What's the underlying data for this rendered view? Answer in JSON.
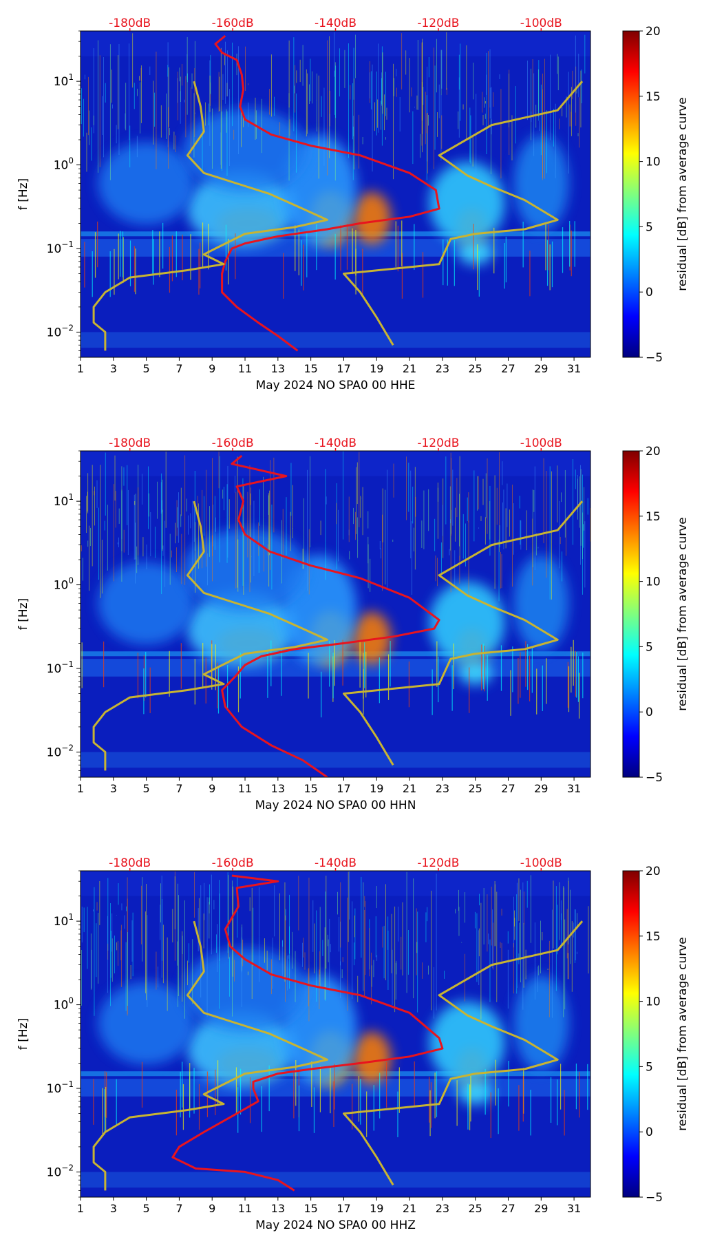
{
  "colors": {
    "colormap": [
      "#00007f",
      "#0000ff",
      "#007fff",
      "#00ffff",
      "#7fff7f",
      "#ffff00",
      "#ff7f00",
      "#ff0000",
      "#7f0000"
    ],
    "background": "#0a1ebe",
    "average_curve": "#e8141e",
    "noise_model": "#c8b432",
    "top_axis_text": "#e8141e",
    "axis_text": "#000000"
  },
  "chart_data": [
    {
      "type": "heatmap",
      "title": "",
      "xlabel": "May 2024 NO SPA0 00 HHE",
      "ylabel": "f [Hz]",
      "x_ticks": [
        "1",
        "3",
        "5",
        "7",
        "9",
        "11",
        "13",
        "15",
        "17",
        "19",
        "21",
        "23",
        "25",
        "27",
        "29",
        "31"
      ],
      "x_tick_values": [
        1,
        3,
        5,
        7,
        9,
        11,
        13,
        15,
        17,
        19,
        21,
        23,
        25,
        27,
        29,
        31
      ],
      "xlim": [
        1,
        32
      ],
      "y_scale": "log",
      "ylim": [
        0.005,
        40
      ],
      "y_ticks": [
        {
          "value": 10,
          "exp": "1"
        },
        {
          "value": 1,
          "exp": "0"
        },
        {
          "value": 0.1,
          "exp": "−1"
        },
        {
          "value": 0.01,
          "exp": "−2"
        }
      ],
      "top_axis": {
        "labels": [
          "-180dB",
          "-160dB",
          "-140dB",
          "-120dB",
          "-100dB"
        ],
        "values": [
          4,
          10.25,
          16.5,
          22.75,
          29
        ]
      },
      "colorbar": {
        "label": "residual [dB] from average curve",
        "min": -5,
        "max": 20,
        "ticks": [
          "20",
          "15",
          "10",
          "5",
          "0",
          "−5"
        ],
        "tick_values": [
          20,
          15,
          10,
          5,
          0,
          -5
        ]
      },
      "series": [
        {
          "name": "average residual curve",
          "points": [
            [
              9.8,
              35
            ],
            [
              9.2,
              28
            ],
            [
              9.6,
              22
            ],
            [
              10.5,
              18
            ],
            [
              10.8,
              12
            ],
            [
              10.9,
              8
            ],
            [
              10.7,
              5
            ],
            [
              11,
              3.5
            ],
            [
              12.6,
              2.3
            ],
            [
              15,
              1.7
            ],
            [
              18,
              1.3
            ],
            [
              21,
              0.8
            ],
            [
              22.6,
              0.5
            ],
            [
              22.8,
              0.3
            ],
            [
              21,
              0.24
            ],
            [
              18,
              0.2
            ],
            [
              16,
              0.17
            ],
            [
              13,
              0.14
            ],
            [
              11,
              0.115
            ],
            [
              10.2,
              0.1
            ],
            [
              9.8,
              0.07
            ],
            [
              9.6,
              0.05
            ],
            [
              9.6,
              0.03
            ],
            [
              10.5,
              0.02
            ],
            [
              11.8,
              0.013
            ],
            [
              13,
              0.009
            ],
            [
              14.2,
              0.006
            ]
          ]
        },
        {
          "name": "NLNM/NHNM noise models",
          "points": [
            [
              7.9,
              10
            ],
            [
              8.3,
              5
            ],
            [
              8.5,
              2.5
            ],
            [
              7.5,
              1.3
            ],
            [
              8.5,
              0.8
            ],
            [
              10.5,
              0.6
            ],
            [
              12.5,
              0.45
            ],
            [
              14.5,
              0.3
            ],
            [
              16,
              0.22
            ],
            [
              14,
              0.18
            ],
            [
              11,
              0.15
            ],
            [
              9.2,
              0.1
            ],
            [
              8.5,
              0.085
            ],
            [
              9.7,
              0.065
            ],
            [
              7.5,
              0.055
            ],
            [
              4,
              0.045
            ],
            [
              2.5,
              0.03
            ],
            [
              1.8,
              0.02
            ],
            [
              1.8,
              0.013
            ],
            [
              2.5,
              0.01
            ],
            [
              2.5,
              0.006
            ]
          ]
        },
        {
          "name": "NHNM upper",
          "points": [
            [
              31.5,
              10
            ],
            [
              30,
              4.5
            ],
            [
              26,
              3
            ],
            [
              22.8,
              1.3
            ],
            [
              24.5,
              0.75
            ],
            [
              26,
              0.55
            ],
            [
              28,
              0.38
            ],
            [
              30,
              0.22
            ],
            [
              28,
              0.17
            ],
            [
              25,
              0.15
            ],
            [
              23.5,
              0.13
            ],
            [
              22.8,
              0.065
            ],
            [
              17,
              0.05
            ],
            [
              18,
              0.03
            ],
            [
              19,
              0.015
            ],
            [
              20,
              0.007
            ]
          ]
        }
      ]
    },
    {
      "type": "heatmap",
      "title": "",
      "xlabel": "May 2024 NO SPA0 00 HHN",
      "ylabel": "f [Hz]",
      "x_ticks": [
        "1",
        "3",
        "5",
        "7",
        "9",
        "11",
        "13",
        "15",
        "17",
        "19",
        "21",
        "23",
        "25",
        "27",
        "29",
        "31"
      ],
      "x_tick_values": [
        1,
        3,
        5,
        7,
        9,
        11,
        13,
        15,
        17,
        19,
        21,
        23,
        25,
        27,
        29,
        31
      ],
      "xlim": [
        1,
        32
      ],
      "y_scale": "log",
      "ylim": [
        0.005,
        40
      ],
      "y_ticks": [
        {
          "value": 10,
          "exp": "1"
        },
        {
          "value": 1,
          "exp": "0"
        },
        {
          "value": 0.1,
          "exp": "−1"
        },
        {
          "value": 0.01,
          "exp": "−2"
        }
      ],
      "top_axis": {
        "labels": [
          "-180dB",
          "-160dB",
          "-140dB",
          "-120dB",
          "-100dB"
        ],
        "values": [
          4,
          10.25,
          16.5,
          22.75,
          29
        ]
      },
      "colorbar": {
        "label": "residual [dB] from average curve",
        "min": -5,
        "max": 20,
        "ticks": [
          "20",
          "15",
          "10",
          "5",
          "0",
          "−5"
        ],
        "tick_values": [
          20,
          15,
          10,
          5,
          0,
          -5
        ]
      },
      "series": [
        {
          "name": "average residual curve",
          "points": [
            [
              10.8,
              35
            ],
            [
              10.2,
              28
            ],
            [
              13.5,
              20
            ],
            [
              10.5,
              15
            ],
            [
              10.9,
              10
            ],
            [
              10.6,
              6
            ],
            [
              11,
              4
            ],
            [
              12.5,
              2.5
            ],
            [
              15,
              1.7
            ],
            [
              18,
              1.2
            ],
            [
              21,
              0.7
            ],
            [
              22.8,
              0.38
            ],
            [
              22.5,
              0.3
            ],
            [
              20,
              0.24
            ],
            [
              17,
              0.2
            ],
            [
              14,
              0.17
            ],
            [
              12,
              0.14
            ],
            [
              11,
              0.11
            ],
            [
              10.4,
              0.08
            ],
            [
              9.6,
              0.055
            ],
            [
              9.8,
              0.035
            ],
            [
              10.8,
              0.02
            ],
            [
              12.6,
              0.012
            ],
            [
              14.5,
              0.008
            ],
            [
              16,
              0.005
            ]
          ]
        },
        {
          "name": "NLNM/NHNM noise models",
          "points": [
            [
              7.9,
              10
            ],
            [
              8.3,
              5
            ],
            [
              8.5,
              2.5
            ],
            [
              7.5,
              1.3
            ],
            [
              8.5,
              0.8
            ],
            [
              10.5,
              0.6
            ],
            [
              12.5,
              0.45
            ],
            [
              14.5,
              0.3
            ],
            [
              16,
              0.22
            ],
            [
              14,
              0.18
            ],
            [
              11,
              0.15
            ],
            [
              9.2,
              0.1
            ],
            [
              8.5,
              0.085
            ],
            [
              9.7,
              0.065
            ],
            [
              7.5,
              0.055
            ],
            [
              4,
              0.045
            ],
            [
              2.5,
              0.03
            ],
            [
              1.8,
              0.02
            ],
            [
              1.8,
              0.013
            ],
            [
              2.5,
              0.01
            ],
            [
              2.5,
              0.006
            ]
          ]
        },
        {
          "name": "NHNM upper",
          "points": [
            [
              31.5,
              10
            ],
            [
              30,
              4.5
            ],
            [
              26,
              3
            ],
            [
              22.8,
              1.3
            ],
            [
              24.5,
              0.75
            ],
            [
              26,
              0.55
            ],
            [
              28,
              0.38
            ],
            [
              30,
              0.22
            ],
            [
              28,
              0.17
            ],
            [
              25,
              0.15
            ],
            [
              23.5,
              0.13
            ],
            [
              22.8,
              0.065
            ],
            [
              17,
              0.05
            ],
            [
              18,
              0.03
            ],
            [
              19,
              0.015
            ],
            [
              20,
              0.007
            ]
          ]
        }
      ]
    },
    {
      "type": "heatmap",
      "title": "",
      "xlabel": "May 2024 NO SPA0 00 HHZ",
      "ylabel": "f [Hz]",
      "x_ticks": [
        "1",
        "3",
        "5",
        "7",
        "9",
        "11",
        "13",
        "15",
        "17",
        "19",
        "21",
        "23",
        "25",
        "27",
        "29",
        "31"
      ],
      "x_tick_values": [
        1,
        3,
        5,
        7,
        9,
        11,
        13,
        15,
        17,
        19,
        21,
        23,
        25,
        27,
        29,
        31
      ],
      "xlim": [
        1,
        32
      ],
      "y_scale": "log",
      "ylim": [
        0.005,
        40
      ],
      "y_ticks": [
        {
          "value": 10,
          "exp": "1"
        },
        {
          "value": 1,
          "exp": "0"
        },
        {
          "value": 0.1,
          "exp": "−1"
        },
        {
          "value": 0.01,
          "exp": "−2"
        }
      ],
      "top_axis": {
        "labels": [
          "-180dB",
          "-160dB",
          "-140dB",
          "-120dB",
          "-100dB"
        ],
        "values": [
          4,
          10.25,
          16.5,
          22.75,
          29
        ]
      },
      "colorbar": {
        "label": "residual [dB] from average curve",
        "min": -5,
        "max": 20,
        "ticks": [
          "20",
          "15",
          "10",
          "5",
          "0",
          "−5"
        ],
        "tick_values": [
          20,
          15,
          10,
          5,
          0,
          -5
        ]
      },
      "series": [
        {
          "name": "average residual curve",
          "points": [
            [
              10.2,
              35
            ],
            [
              13,
              30
            ],
            [
              10.5,
              25
            ],
            [
              10.6,
              15
            ],
            [
              9.8,
              8
            ],
            [
              10.1,
              5
            ],
            [
              11,
              3.5
            ],
            [
              12.6,
              2.3
            ],
            [
              15,
              1.7
            ],
            [
              18,
              1.3
            ],
            [
              21,
              0.8
            ],
            [
              22.8,
              0.4
            ],
            [
              23,
              0.3
            ],
            [
              21,
              0.24
            ],
            [
              18,
              0.2
            ],
            [
              15,
              0.17
            ],
            [
              13,
              0.15
            ],
            [
              11.5,
              0.12
            ],
            [
              11.5,
              0.1
            ],
            [
              11.8,
              0.07
            ],
            [
              10.5,
              0.05
            ],
            [
              8.5,
              0.03
            ],
            [
              7,
              0.02
            ],
            [
              6.6,
              0.015
            ],
            [
              8,
              0.011
            ],
            [
              11,
              0.01
            ],
            [
              13,
              0.008
            ],
            [
              14,
              0.006
            ]
          ]
        },
        {
          "name": "NLNM/NHNM noise models",
          "points": [
            [
              7.9,
              10
            ],
            [
              8.3,
              5
            ],
            [
              8.5,
              2.5
            ],
            [
              7.5,
              1.3
            ],
            [
              8.5,
              0.8
            ],
            [
              10.5,
              0.6
            ],
            [
              12.5,
              0.45
            ],
            [
              14.5,
              0.3
            ],
            [
              16,
              0.22
            ],
            [
              14,
              0.18
            ],
            [
              11,
              0.15
            ],
            [
              9.2,
              0.1
            ],
            [
              8.5,
              0.085
            ],
            [
              9.7,
              0.065
            ],
            [
              7.5,
              0.055
            ],
            [
              4,
              0.045
            ],
            [
              2.5,
              0.03
            ],
            [
              1.8,
              0.02
            ],
            [
              1.8,
              0.013
            ],
            [
              2.5,
              0.01
            ],
            [
              2.5,
              0.006
            ]
          ]
        },
        {
          "name": "NHNM upper",
          "points": [
            [
              31.5,
              10
            ],
            [
              30,
              4.5
            ],
            [
              26,
              3
            ],
            [
              22.8,
              1.3
            ],
            [
              24.5,
              0.75
            ],
            [
              26,
              0.55
            ],
            [
              28,
              0.38
            ],
            [
              30,
              0.22
            ],
            [
              28,
              0.17
            ],
            [
              25,
              0.15
            ],
            [
              23.5,
              0.13
            ],
            [
              22.8,
              0.065
            ],
            [
              17,
              0.05
            ],
            [
              18,
              0.03
            ],
            [
              19,
              0.015
            ],
            [
              20,
              0.007
            ]
          ]
        }
      ]
    }
  ]
}
